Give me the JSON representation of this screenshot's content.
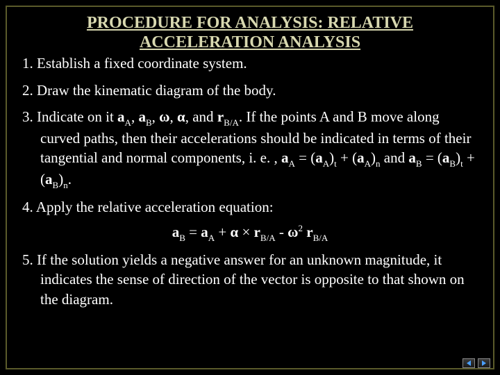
{
  "colors": {
    "background": "#000000",
    "frame_border": "#5a5a2a",
    "title_text": "#d8d8b0",
    "body_text": "#ffffff",
    "nav_arrow": "#4aa0ff"
  },
  "typography": {
    "family": "Times New Roman",
    "title_fontsize": 24,
    "body_fontsize": 21
  },
  "title": {
    "line1": "PROCEDURE FOR ANALYSIS:  RELATIVE",
    "line2": "ACCELERATION ANALYSIS"
  },
  "steps": {
    "s1": "1. Establish a fixed coordinate system.",
    "s2": "2. Draw the kinematic diagram of the body.",
    "s3_a": "3. Indicate on it ",
    "s3_aA": "a",
    "s3_aA_sub": "A",
    "s3_b1": ", ",
    "s3_aB": "a",
    "s3_aB_sub": "B",
    "s3_b2": ", ",
    "s3_omega": "ω",
    "s3_b3": ", ",
    "s3_alpha": "α",
    "s3_b4": ", and ",
    "s3_r": "r",
    "s3_r_sub": "B/A",
    "s3_c": ". If the points A and B move along curved paths, then their accelerations should be indicated in terms of their tangential and normal components, i. e. , ",
    "s3_eqA_lhs": "a",
    "s3_eqA_lhs_sub": "A",
    "s3_eq": " = (",
    "s3_eqA_t": "a",
    "s3_eqA_t_sub": "A",
    "s3_rp": ")",
    "s3_t": "t",
    "s3_plus": " + (",
    "s3_eqA_n": "a",
    "s3_eqA_n_sub": "A",
    "s3_n": "n",
    "s3_and": " and ",
    "s3_eqB_lhs": "a",
    "s3_eqB_lhs_sub": "B",
    "s3_eqB_t": "a",
    "s3_eqB_t_sub": "B",
    "s3_eqB_n": "a",
    "s3_eqB_n_sub": "B",
    "s3_period": ".",
    "s4": "4. Apply the relative acceleration equation:",
    "eq_aB": "a",
    "eq_aB_sub": "B",
    "eq_eq": " = ",
    "eq_aA": "a",
    "eq_aA_sub": "A",
    "eq_p1": " + ",
    "eq_alpha": "α",
    "eq_x": " × ",
    "eq_r1": "r",
    "eq_r1_sub": "B/A",
    "eq_m": " - ",
    "eq_omega": "ω",
    "eq_sq": "2",
    "eq_sp": " ",
    "eq_r2": "r",
    "eq_r2_sub": "B/A",
    "s5": "5. If the solution yields a negative answer for an unknown magnitude, it indicates the sense of direction of the vector is opposite to that shown on the diagram."
  }
}
